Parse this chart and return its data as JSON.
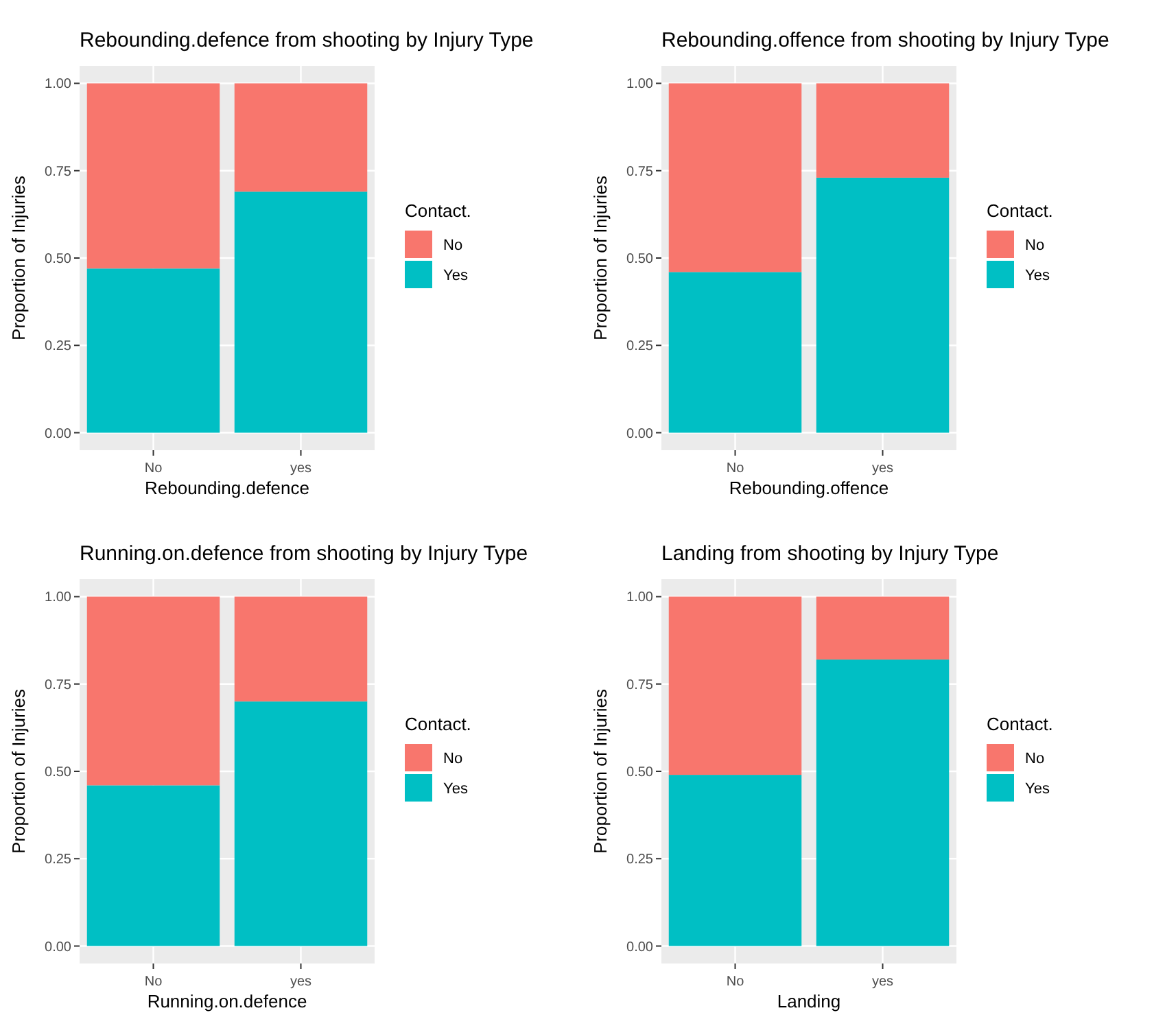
{
  "chart_data": [
    {
      "type": "bar",
      "title": "Rebounding.defence from shooting by Injury Type",
      "xlabel": "Rebounding.defence",
      "ylabel": "Proportion of Injuries",
      "legend_title": "Contact.",
      "categories": [
        "No",
        "yes"
      ],
      "stacked": true,
      "legend": "right",
      "grid": true,
      "ylim": [
        -0.05,
        1.05
      ],
      "yticks": [
        {
          "value": 0,
          "label": "0.00"
        },
        {
          "value": 0.25,
          "label": "0.25"
        },
        {
          "value": 0.5,
          "label": "0.50"
        },
        {
          "value": 0.75,
          "label": "0.75"
        },
        {
          "value": 1,
          "label": "1.00"
        }
      ],
      "series": [
        {
          "name": "Yes",
          "color": "#00bfc4",
          "values": [
            0.47,
            0.69
          ]
        },
        {
          "name": "No",
          "color": "#f8766d",
          "values": [
            0.53,
            0.31
          ]
        }
      ]
    },
    {
      "type": "bar",
      "title": "Rebounding.offence from shooting by Injury Type",
      "xlabel": "Rebounding.offence",
      "ylabel": "Proportion of Injuries",
      "legend_title": "Contact.",
      "categories": [
        "No",
        "yes"
      ],
      "stacked": true,
      "legend": "right",
      "grid": true,
      "ylim": [
        -0.05,
        1.05
      ],
      "yticks": [
        {
          "value": 0,
          "label": "0.00"
        },
        {
          "value": 0.25,
          "label": "0.25"
        },
        {
          "value": 0.5,
          "label": "0.50"
        },
        {
          "value": 0.75,
          "label": "0.75"
        },
        {
          "value": 1,
          "label": "1.00"
        }
      ],
      "series": [
        {
          "name": "Yes",
          "color": "#00bfc4",
          "values": [
            0.46,
            0.73
          ]
        },
        {
          "name": "No",
          "color": "#f8766d",
          "values": [
            0.54,
            0.27
          ]
        }
      ]
    },
    {
      "type": "bar",
      "title": "Running.on.defence from shooting by Injury Type",
      "xlabel": "Running.on.defence",
      "ylabel": "Proportion of Injuries",
      "legend_title": "Contact.",
      "categories": [
        "No",
        "yes"
      ],
      "stacked": true,
      "legend": "right",
      "grid": true,
      "ylim": [
        -0.05,
        1.05
      ],
      "yticks": [
        {
          "value": 0,
          "label": "0.00"
        },
        {
          "value": 0.25,
          "label": "0.25"
        },
        {
          "value": 0.5,
          "label": "0.50"
        },
        {
          "value": 0.75,
          "label": "0.75"
        },
        {
          "value": 1,
          "label": "1.00"
        }
      ],
      "series": [
        {
          "name": "Yes",
          "color": "#00bfc4",
          "values": [
            0.46,
            0.7
          ]
        },
        {
          "name": "No",
          "color": "#f8766d",
          "values": [
            0.54,
            0.3
          ]
        }
      ]
    },
    {
      "type": "bar",
      "title": "Landing from shooting by Injury Type",
      "xlabel": "Landing",
      "ylabel": "Proportion of Injuries",
      "legend_title": "Contact.",
      "categories": [
        "No",
        "yes"
      ],
      "stacked": true,
      "legend": "right",
      "grid": true,
      "ylim": [
        -0.05,
        1.05
      ],
      "yticks": [
        {
          "value": 0,
          "label": "0.00"
        },
        {
          "value": 0.25,
          "label": "0.25"
        },
        {
          "value": 0.5,
          "label": "0.50"
        },
        {
          "value": 0.75,
          "label": "0.75"
        },
        {
          "value": 1,
          "label": "1.00"
        }
      ],
      "series": [
        {
          "name": "Yes",
          "color": "#00bfc4",
          "values": [
            0.49,
            0.82
          ]
        },
        {
          "name": "No",
          "color": "#f8766d",
          "values": [
            0.51,
            0.18
          ]
        }
      ]
    }
  ]
}
